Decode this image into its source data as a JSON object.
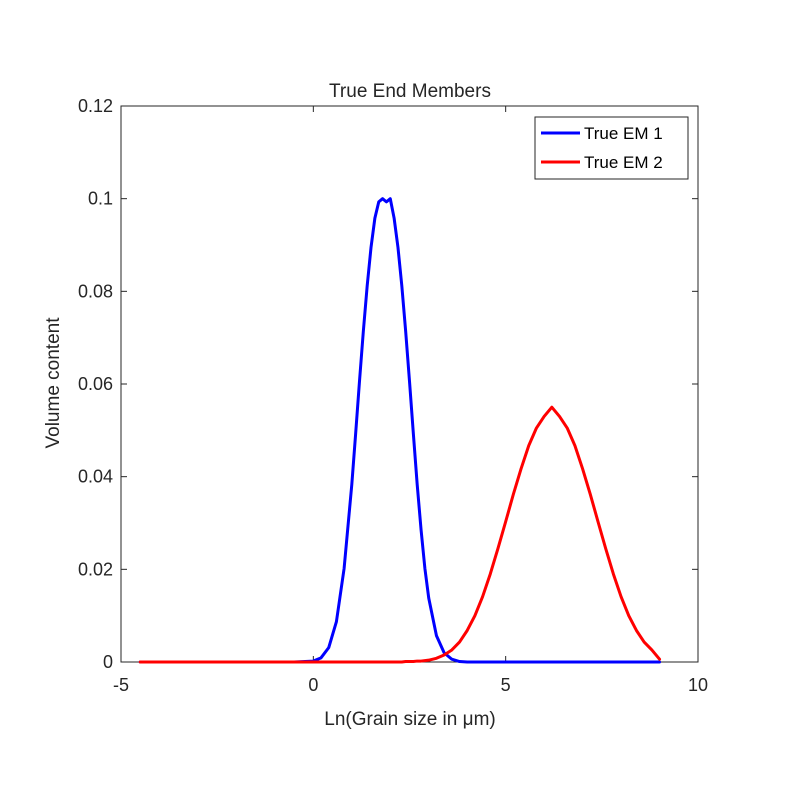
{
  "chart_data": {
    "type": "line",
    "title": "True End Members",
    "xlabel": "Ln(Grain size in μm)",
    "ylabel": "Volume content",
    "xlim": [
      -5,
      10
    ],
    "ylim": [
      0,
      0.12
    ],
    "xticks": [
      -5,
      0,
      5,
      10
    ],
    "xtick_labels": [
      "-5",
      "0",
      "5",
      "10"
    ],
    "yticks": [
      0,
      0.02,
      0.04,
      0.06,
      0.08,
      0.1,
      0.12
    ],
    "ytick_labels": [
      "0",
      "0.02",
      "0.04",
      "0.06",
      "0.08",
      "0.1",
      "0.12"
    ],
    "grid": false,
    "legend_position": "top-right",
    "x": [
      -4.5,
      -4.0,
      -3.5,
      -3.0,
      -2.5,
      -2.0,
      -1.5,
      -1.0,
      -0.5,
      0.0,
      0.2,
      0.4,
      0.6,
      0.8,
      1.0,
      1.1,
      1.2,
      1.3,
      1.4,
      1.5,
      1.6,
      1.7,
      1.8,
      1.9,
      2.0,
      2.1,
      2.2,
      2.3,
      2.4,
      2.5,
      2.6,
      2.7,
      2.8,
      2.9,
      3.0,
      3.2,
      3.4,
      3.6,
      3.8,
      4.0,
      4.2,
      4.4,
      4.6,
      4.8,
      5.0,
      5.2,
      5.4,
      5.6,
      5.8,
      6.0,
      6.2,
      6.4,
      6.6,
      6.8,
      7.0,
      7.2,
      7.4,
      7.6,
      7.8,
      8.0,
      8.2,
      8.4,
      8.6,
      8.8,
      9.0
    ],
    "series": [
      {
        "name": "True EM 1",
        "color": "#0000ff",
        "values": [
          0,
          0,
          0,
          0,
          0,
          0,
          0,
          0,
          0,
          0.0002,
          0.0009,
          0.0031,
          0.0087,
          0.0202,
          0.0383,
          0.0493,
          0.0606,
          0.0714,
          0.0812,
          0.0895,
          0.0958,
          0.0993,
          0.1,
          0.0993,
          0.1,
          0.0958,
          0.0895,
          0.0812,
          0.0714,
          0.0606,
          0.0493,
          0.0383,
          0.0286,
          0.0202,
          0.0138,
          0.0057,
          0.002,
          0.0006,
          0.0001,
          0,
          0,
          0,
          0,
          0,
          0,
          0,
          0,
          0,
          0,
          0,
          0,
          0,
          0,
          0,
          0,
          0,
          0,
          0,
          0,
          0,
          0,
          0,
          0,
          0,
          0
        ]
      },
      {
        "name": "True EM 2",
        "color": "#ff0000",
        "values": [
          0,
          0,
          0,
          0,
          0,
          0,
          0,
          0,
          0,
          0,
          0,
          0,
          0,
          0,
          0,
          0,
          0,
          0,
          0,
          0,
          0,
          0,
          0,
          0,
          0,
          0,
          0,
          0,
          0.0001,
          0.0001,
          0.0001,
          0.0002,
          0.0002,
          0.0003,
          0.0004,
          0.0008,
          0.0015,
          0.0026,
          0.0043,
          0.0068,
          0.01,
          0.0141,
          0.019,
          0.0245,
          0.0303,
          0.0362,
          0.0417,
          0.0467,
          0.0505,
          0.053,
          0.055,
          0.053,
          0.0505,
          0.0467,
          0.0417,
          0.0362,
          0.0303,
          0.0245,
          0.019,
          0.0141,
          0.01,
          0.0068,
          0.0043,
          0.0026,
          0.0006
        ]
      }
    ]
  }
}
